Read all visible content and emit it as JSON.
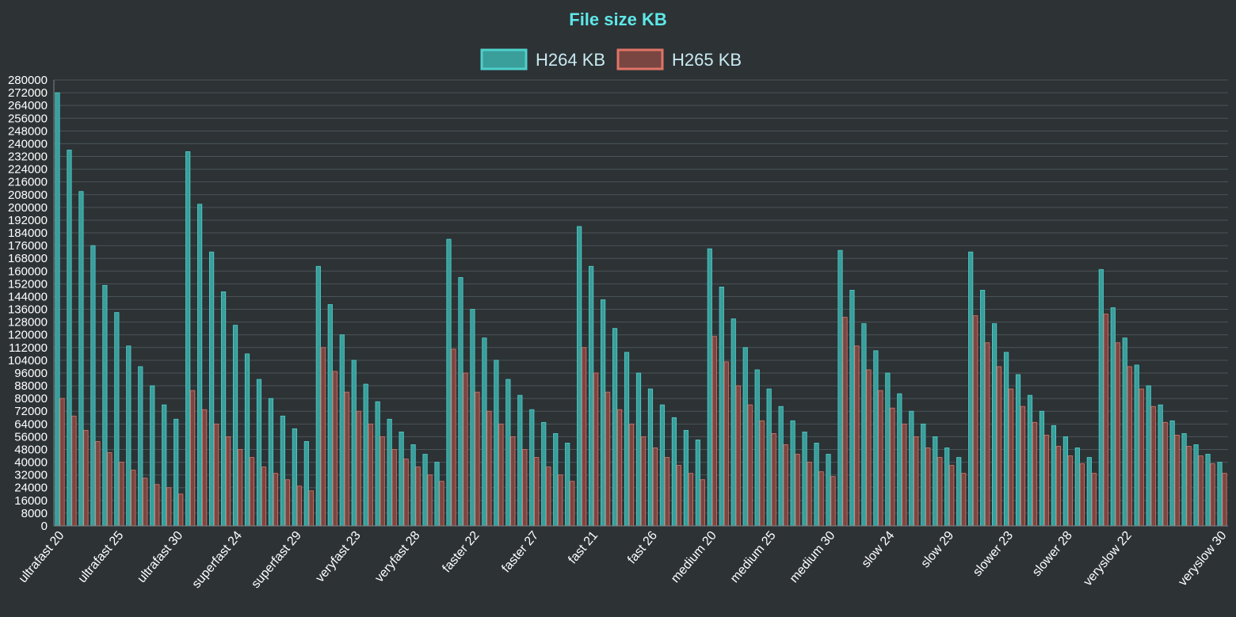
{
  "chart_data": {
    "type": "bar",
    "title": "File size KB",
    "xlabel": "",
    "ylabel": "",
    "ylim": [
      0,
      280000
    ],
    "ytick_step": 8000,
    "legend_position": "top-center",
    "grid": true,
    "categories": [
      "ultrafast 20",
      "ultrafast 21",
      "ultrafast 22",
      "ultrafast 23",
      "ultrafast 24",
      "ultrafast 25",
      "ultrafast 26",
      "ultrafast 27",
      "ultrafast 28",
      "ultrafast 29",
      "ultrafast 30",
      "superfast 20",
      "superfast 21",
      "superfast 22",
      "superfast 23",
      "superfast 24",
      "superfast 25",
      "superfast 26",
      "superfast 27",
      "superfast 28",
      "superfast 29",
      "superfast 30",
      "veryfast 20",
      "veryfast 21",
      "veryfast 22",
      "veryfast 23",
      "veryfast 24",
      "veryfast 25",
      "veryfast 26",
      "veryfast 27",
      "veryfast 28",
      "veryfast 29",
      "veryfast 30",
      "faster 20",
      "faster 21",
      "faster 22",
      "faster 23",
      "faster 24",
      "faster 25",
      "faster 26",
      "faster 27",
      "faster 28",
      "faster 29",
      "faster 30",
      "fast 20",
      "fast 21",
      "fast 22",
      "fast 23",
      "fast 24",
      "fast 25",
      "fast 26",
      "fast 27",
      "fast 28",
      "fast 29",
      "fast 30",
      "medium 20",
      "medium 21",
      "medium 22",
      "medium 23",
      "medium 24",
      "medium 25",
      "medium 26",
      "medium 27",
      "medium 28",
      "medium 29",
      "medium 30",
      "slow 20",
      "slow 21",
      "slow 22",
      "slow 23",
      "slow 24",
      "slow 25",
      "slow 26",
      "slow 27",
      "slow 28",
      "slow 29",
      "slow 30",
      "slower 20",
      "slower 21",
      "slower 22",
      "slower 23",
      "slower 24",
      "slower 25",
      "slower 26",
      "slower 27",
      "slower 28",
      "slower 29",
      "slower 30",
      "veryslow 20",
      "veryslow 21",
      "veryslow 22",
      "veryslow 23",
      "veryslow 24",
      "veryslow 25",
      "veryslow 26",
      "veryslow 27",
      "veryslow 28",
      "veryslow 29",
      "veryslow 30"
    ],
    "xtick_labels": [
      "ultrafast 20",
      "ultrafast 25",
      "ultrafast 30",
      "superfast 24",
      "superfast 29",
      "veryfast 23",
      "veryfast 28",
      "faster 22",
      "faster 27",
      "fast 21",
      "fast 26",
      "medium 20",
      "medium 25",
      "medium 30",
      "slow 24",
      "slow 29",
      "slower 23",
      "slower 28",
      "veryslow 22",
      "veryslow 30"
    ],
    "series": [
      {
        "name": "H264 KB",
        "color": "#3a9e9a",
        "border": "#4fd0cc",
        "values": [
          272000,
          236000,
          210000,
          176000,
          151000,
          134000,
          113000,
          100000,
          88000,
          76000,
          67000,
          235000,
          202000,
          172000,
          147000,
          126000,
          108000,
          92000,
          80000,
          69000,
          61000,
          53000,
          163000,
          139000,
          120000,
          104000,
          89000,
          78000,
          67000,
          59000,
          51000,
          45000,
          40000,
          180000,
          156000,
          136000,
          118000,
          104000,
          92000,
          82000,
          73000,
          65000,
          58000,
          52000,
          188000,
          163000,
          142000,
          124000,
          109000,
          96000,
          86000,
          76000,
          68000,
          60000,
          54000,
          174000,
          150000,
          130000,
          112000,
          98000,
          86000,
          75000,
          66000,
          59000,
          52000,
          45000,
          173000,
          148000,
          127000,
          110000,
          96000,
          83000,
          72000,
          64000,
          56000,
          49000,
          43000,
          172000,
          148000,
          127000,
          109000,
          95000,
          82000,
          72000,
          63000,
          56000,
          49000,
          43000,
          161000,
          137000,
          118000,
          101000,
          88000,
          76000,
          66000,
          58000,
          51000,
          45000,
          40000
        ]
      },
      {
        "name": "H265 KB",
        "color": "#7a4642",
        "border": "#e07466",
        "values": [
          80000,
          69000,
          60000,
          53000,
          46000,
          40000,
          35000,
          30000,
          26000,
          24000,
          20000,
          85000,
          73000,
          64000,
          56000,
          48000,
          43000,
          37000,
          33000,
          29000,
          25000,
          22000,
          112000,
          97000,
          84000,
          72000,
          64000,
          56000,
          48000,
          42000,
          37000,
          32000,
          28000,
          111000,
          96000,
          84000,
          72000,
          64000,
          56000,
          48000,
          43000,
          37000,
          32000,
          28000,
          112000,
          96000,
          84000,
          73000,
          64000,
          56000,
          49000,
          43000,
          38000,
          33000,
          29000,
          119000,
          103000,
          88000,
          76000,
          66000,
          58000,
          51000,
          45000,
          40000,
          34000,
          31000,
          131000,
          113000,
          98000,
          85000,
          74000,
          64000,
          56000,
          49000,
          43000,
          38000,
          33000,
          132000,
          115000,
          100000,
          86000,
          75000,
          65000,
          57000,
          50000,
          44000,
          39000,
          33000,
          133000,
          115000,
          100000,
          86000,
          75000,
          65000,
          57000,
          50000,
          44000,
          39000,
          33000
        ]
      }
    ]
  }
}
